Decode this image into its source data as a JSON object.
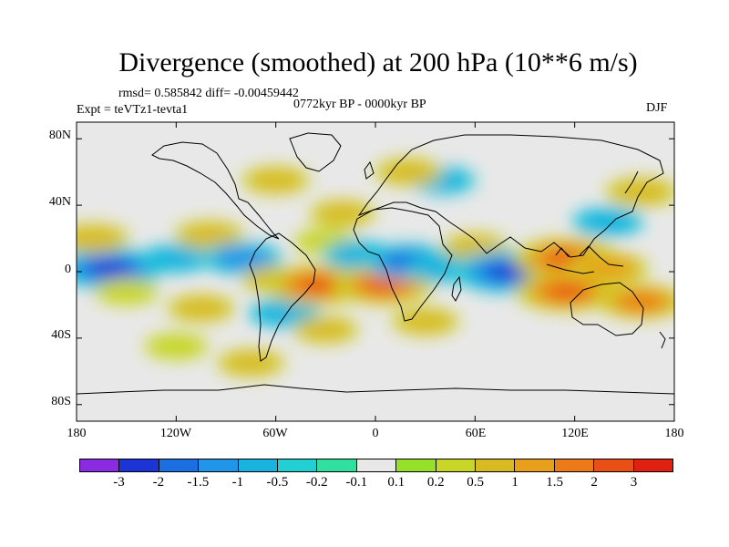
{
  "title": "Divergence (smoothed) at 200 hPa (10**6 m/s)",
  "stats": "rmsd= 0.585842 diff= -0.00459442",
  "experiment": "Expt = teVTz1-tevta1",
  "period": "0772kyr BP - 0000kyr BP",
  "season": "DJF",
  "map": {
    "projection": "cylindrical equidistant",
    "lon_range": [
      -180,
      180
    ],
    "lat_range": [
      -90,
      90
    ],
    "lat_ticks": [
      "80N",
      "40N",
      "0",
      "40S",
      "80S"
    ],
    "lon_ticks": [
      "180",
      "120W",
      "60W",
      "0",
      "60E",
      "120E",
      "180"
    ],
    "background_color": "#e8e8e8"
  },
  "colorbar": {
    "colors": [
      "#8a2be2",
      "#1c33d6",
      "#1b6fe0",
      "#2196e8",
      "#19b3e0",
      "#22cfd2",
      "#2fe0a0",
      "#e8e8e8",
      "#96e02a",
      "#c8d628",
      "#d8bb20",
      "#e8a01c",
      "#ec7a18",
      "#ea4f15",
      "#e02010"
    ],
    "labels": [
      "-3",
      "-2",
      "-1.5",
      "-1",
      "-0.5",
      "-0.2",
      "-0.1",
      "0.1",
      "0.2",
      "0.5",
      "1",
      "1.5",
      "2",
      "3"
    ]
  },
  "anomalies": [
    {
      "lon": -160,
      "lat": 2,
      "value": -2.5
    },
    {
      "lon": -170,
      "lat": 20,
      "value": 0.8
    },
    {
      "lon": -150,
      "lat": -12,
      "value": 0.4
    },
    {
      "lon": -120,
      "lat": 8,
      "value": -0.7
    },
    {
      "lon": -100,
      "lat": 22,
      "value": 0.7
    },
    {
      "lon": -105,
      "lat": -22,
      "value": 0.6
    },
    {
      "lon": -120,
      "lat": -45,
      "value": 0.4
    },
    {
      "lon": -80,
      "lat": 8,
      "value": -1.2
    },
    {
      "lon": -60,
      "lat": -5,
      "value": 0.6
    },
    {
      "lon": -55,
      "lat": -25,
      "value": -0.8
    },
    {
      "lon": -75,
      "lat": -55,
      "value": 0.6
    },
    {
      "lon": -35,
      "lat": -8,
      "value": 2.3
    },
    {
      "lon": -30,
      "lat": 18,
      "value": 0.4
    },
    {
      "lon": -30,
      "lat": -35,
      "value": 0.5
    },
    {
      "lon": -10,
      "lat": 10,
      "value": -0.8
    },
    {
      "lon": 5,
      "lat": -8,
      "value": 2.1
    },
    {
      "lon": 20,
      "lat": 6,
      "value": -1.6
    },
    {
      "lon": 40,
      "lat": 2,
      "value": -0.7
    },
    {
      "lon": 30,
      "lat": -30,
      "value": 0.6
    },
    {
      "lon": 60,
      "lat": 15,
      "value": 0.5
    },
    {
      "lon": 80,
      "lat": 0,
      "value": -2.6
    },
    {
      "lon": 115,
      "lat": 8,
      "value": 2.4
    },
    {
      "lon": 140,
      "lat": 2,
      "value": 1.2
    },
    {
      "lon": 115,
      "lat": -12,
      "value": 2.2
    },
    {
      "lon": 160,
      "lat": -18,
      "value": 1.5
    },
    {
      "lon": 140,
      "lat": 30,
      "value": -0.8
    },
    {
      "lon": 160,
      "lat": 48,
      "value": 0.8
    },
    {
      "lon": -60,
      "lat": 55,
      "value": 0.6
    },
    {
      "lon": 40,
      "lat": 55,
      "value": -0.6
    },
    {
      "lon": -20,
      "lat": 35,
      "value": 0.5
    },
    {
      "lon": 20,
      "lat": 60,
      "value": 0.6
    }
  ]
}
